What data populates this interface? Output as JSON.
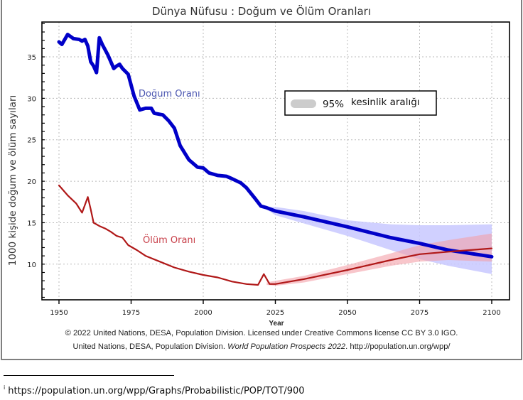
{
  "chart_data": {
    "type": "line",
    "title": "Dünya Nüfusu : Doğum ve Ölüm Oranları",
    "xlabel": "Year",
    "ylabel": "1000 kişide doğum ve ölüm sayıları",
    "xlim": [
      1950,
      2100
    ],
    "ylim": [
      5.7,
      39.2
    ],
    "xticks": [
      1950,
      1975,
      2000,
      2025,
      2050,
      2075,
      2100
    ],
    "yticks": [
      10,
      15,
      20,
      25,
      30,
      35
    ],
    "yminor_step": 1,
    "grid": true,
    "series": [
      {
        "name": "Doğum Oranı",
        "color": "#0000c8",
        "label_color": "#4a55b0",
        "x": [
          1950,
          1951,
          1953,
          1955,
          1957,
          1958,
          1959,
          1960,
          1961,
          1962,
          1963,
          1964,
          1965,
          1967,
          1969,
          1970,
          1971,
          1972,
          1974,
          1976,
          1978,
          1980,
          1982,
          1983,
          1986,
          1988,
          1990,
          1992,
          1995,
          1998,
          2000,
          2002,
          2005,
          2008,
          2010,
          2013,
          2015,
          2018,
          2020,
          2022,
          2025,
          2035,
          2050,
          2065,
          2075,
          2085,
          2100
        ],
        "y": [
          36.8,
          36.5,
          37.7,
          37.2,
          37.1,
          36.9,
          37.1,
          36.3,
          34.4,
          33.9,
          33.1,
          37.3,
          36.5,
          35.2,
          33.6,
          33.9,
          34.1,
          33.6,
          32.9,
          30.3,
          28.6,
          28.8,
          28.8,
          28.2,
          28.0,
          27.3,
          26.4,
          24.3,
          22.6,
          21.7,
          21.6,
          21.0,
          20.7,
          20.6,
          20.3,
          19.8,
          19.2,
          17.9,
          17.0,
          16.8,
          16.4,
          15.7,
          14.5,
          13.2,
          12.5,
          11.7,
          10.9
        ],
        "interval": {
          "color": "#c8c8ff",
          "x": [
            2022,
            2025,
            2035,
            2050,
            2065,
            2075,
            2085,
            2100
          ],
          "upper": [
            16.9,
            16.9,
            16.4,
            15.3,
            14.8,
            14.7,
            14.7,
            14.8
          ],
          "lower": [
            16.6,
            15.9,
            14.9,
            13.4,
            11.7,
            10.6,
            9.8,
            8.8
          ]
        }
      },
      {
        "name": "Ölüm Oranı",
        "color": "#b01818",
        "label_color": "#c8404a",
        "x": [
          1950,
          1953,
          1956,
          1958,
          1960,
          1961,
          1962,
          1964,
          1966,
          1968,
          1970,
          1972,
          1974,
          1977,
          1980,
          1985,
          1990,
          1995,
          2000,
          2005,
          2010,
          2015,
          2019,
          2021,
          2023,
          2025,
          2035,
          2050,
          2065,
          2075,
          2085,
          2100
        ],
        "y": [
          19.5,
          18.3,
          17.3,
          16.2,
          18.1,
          16.6,
          15.0,
          14.6,
          14.3,
          13.9,
          13.4,
          13.2,
          12.3,
          11.7,
          11.0,
          10.3,
          9.6,
          9.1,
          8.7,
          8.4,
          7.9,
          7.6,
          7.5,
          8.8,
          7.6,
          7.6,
          8.2,
          9.3,
          10.5,
          11.2,
          11.5,
          11.9
        ],
        "interval": {
          "color": "#f4a0a8",
          "x": [
            2022,
            2025,
            2035,
            2050,
            2065,
            2075,
            2085,
            2100
          ],
          "upper": [
            7.8,
            8.0,
            8.6,
            9.9,
            11.3,
            12.3,
            12.9,
            13.7
          ],
          "lower": [
            7.5,
            7.4,
            7.8,
            8.8,
            9.8,
            10.3,
            10.5,
            10.3
          ]
        }
      }
    ],
    "legend": {
      "swatch_color": "#cccccc",
      "label_percent": "95%",
      "label_text": "kesinlik aralığı",
      "placement": "upper-right-center"
    },
    "annotations": {
      "birth_label": "Doğum Oranı",
      "death_label": "Ölüm Oranı"
    },
    "credits": {
      "line1": "© 2022 United Nations, DESA, Population Division. Licensed under Creative Commons license CC BY 3.0 IGO.",
      "line2_prefix": "United Nations, DESA, Population Division. ",
      "line2_italic": "World Population Prospects 2022",
      "line2_suffix": ". http://population.un.org/wpp/"
    }
  },
  "footnote": {
    "marker": "i",
    "text": "https://population.un.org/wpp/Graphs/Probabilistic/POP/TOT/900"
  }
}
